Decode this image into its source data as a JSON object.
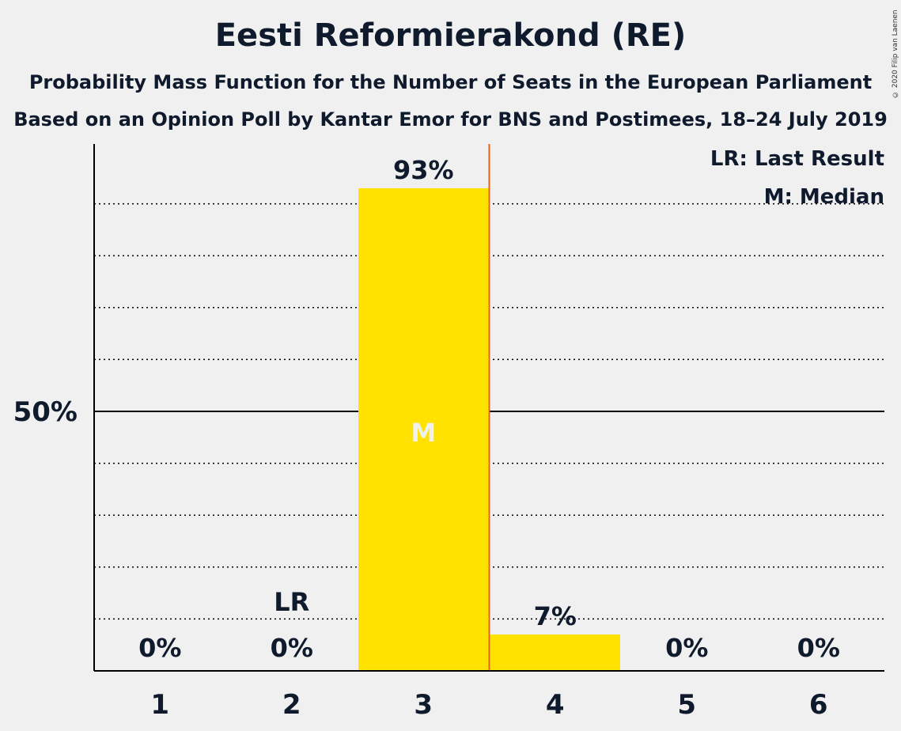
{
  "title": "Eesti Reformierakond (RE)",
  "subtitle1": "Probability Mass Function for the Number of Seats in the European Parliament",
  "subtitle2": "Based on an Opinion Poll by Kantar Emor for BNS and Postimees, 18–24 July 2019",
  "copyright": "© 2020 Filip van Laenen",
  "legend": {
    "last_result": "LR: Last Result",
    "median": "M: Median"
  },
  "colors": {
    "bar": "#ffe200",
    "last_result_line": "#e0651b",
    "median_label": "#f0f0f0",
    "text": "#0f1b2d"
  },
  "chart_data": {
    "type": "bar",
    "categories": [
      "1",
      "2",
      "3",
      "4",
      "5",
      "6"
    ],
    "values": [
      0,
      0,
      93,
      7,
      0,
      0
    ],
    "value_labels": [
      "0%",
      "0%",
      "93%",
      "7%",
      "0%",
      "0%"
    ],
    "ylim": [
      0,
      100
    ],
    "y_tick_labels": [
      {
        "value": 50,
        "label": "50%"
      }
    ],
    "gridlines": "dotted every 10%, solid at 50%",
    "last_result_category": "2",
    "last_result_marker": "LR",
    "median_category": "3",
    "median_marker": "M",
    "legend_position": "top-right"
  }
}
